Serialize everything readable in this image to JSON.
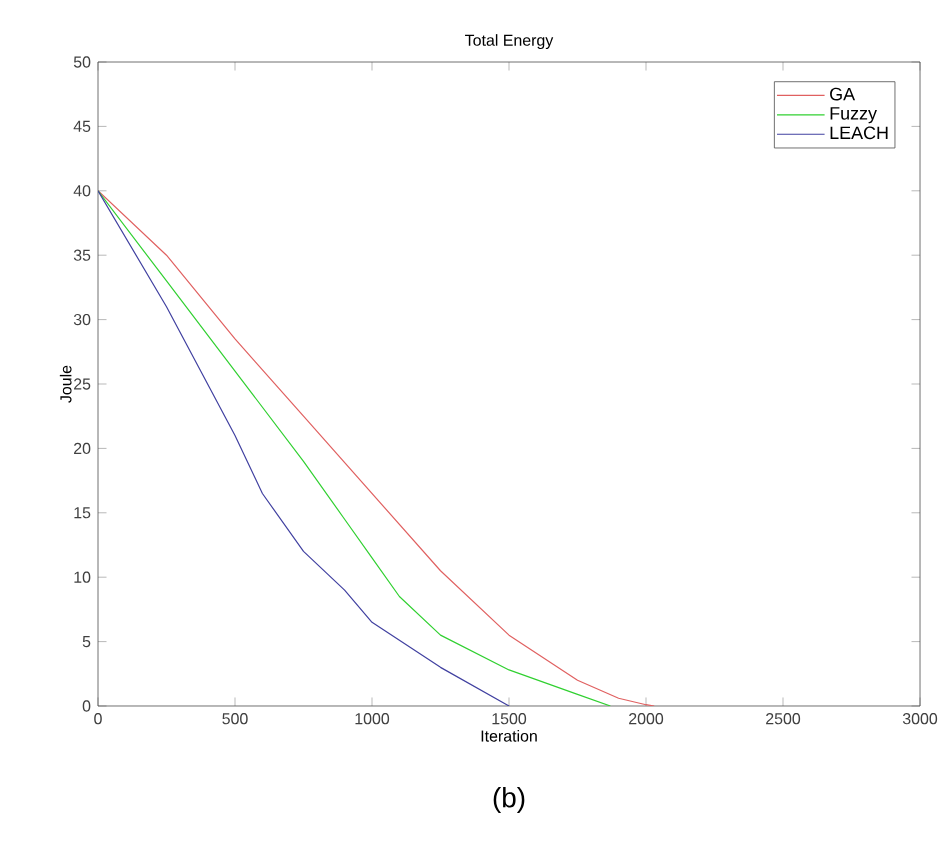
{
  "chart_data": {
    "type": "line",
    "title": "Total Energy",
    "xlabel": "Iteration",
    "ylabel": "Joule",
    "annotations": [
      "(b)"
    ],
    "xlim": [
      0,
      3000
    ],
    "xticks": [
      0,
      500,
      1000,
      1500,
      2000,
      2500,
      3000
    ],
    "ylim": [
      0,
      50
    ],
    "yticks": [
      0,
      5,
      10,
      15,
      20,
      25,
      30,
      35,
      40,
      45,
      50
    ],
    "legend": "top right",
    "grid": false,
    "marker": "none",
    "line_style": "solid",
    "series": [
      {
        "name": "GA",
        "color": "#e06060",
        "x": [
          0,
          250,
          500,
          750,
          1000,
          1250,
          1500,
          1750,
          1900,
          2000,
          2030
        ],
        "values": [
          40,
          35,
          28.5,
          22.5,
          16.5,
          10.5,
          5.5,
          2,
          0.6,
          0.1,
          0
        ]
      },
      {
        "name": "Fuzzy",
        "color": "#30d030",
        "x": [
          0,
          250,
          500,
          750,
          900,
          1000,
          1100,
          1250,
          1500,
          1750,
          1870
        ],
        "values": [
          40,
          33,
          26,
          19,
          14.5,
          11.5,
          8.5,
          5.5,
          2.8,
          0.9,
          0
        ]
      },
      {
        "name": "LEACH",
        "color": "#4040a0",
        "x": [
          0,
          250,
          500,
          600,
          750,
          900,
          1000,
          1250,
          1500
        ],
        "values": [
          40,
          31,
          21,
          16.5,
          12,
          9,
          6.5,
          3,
          0
        ]
      }
    ]
  }
}
